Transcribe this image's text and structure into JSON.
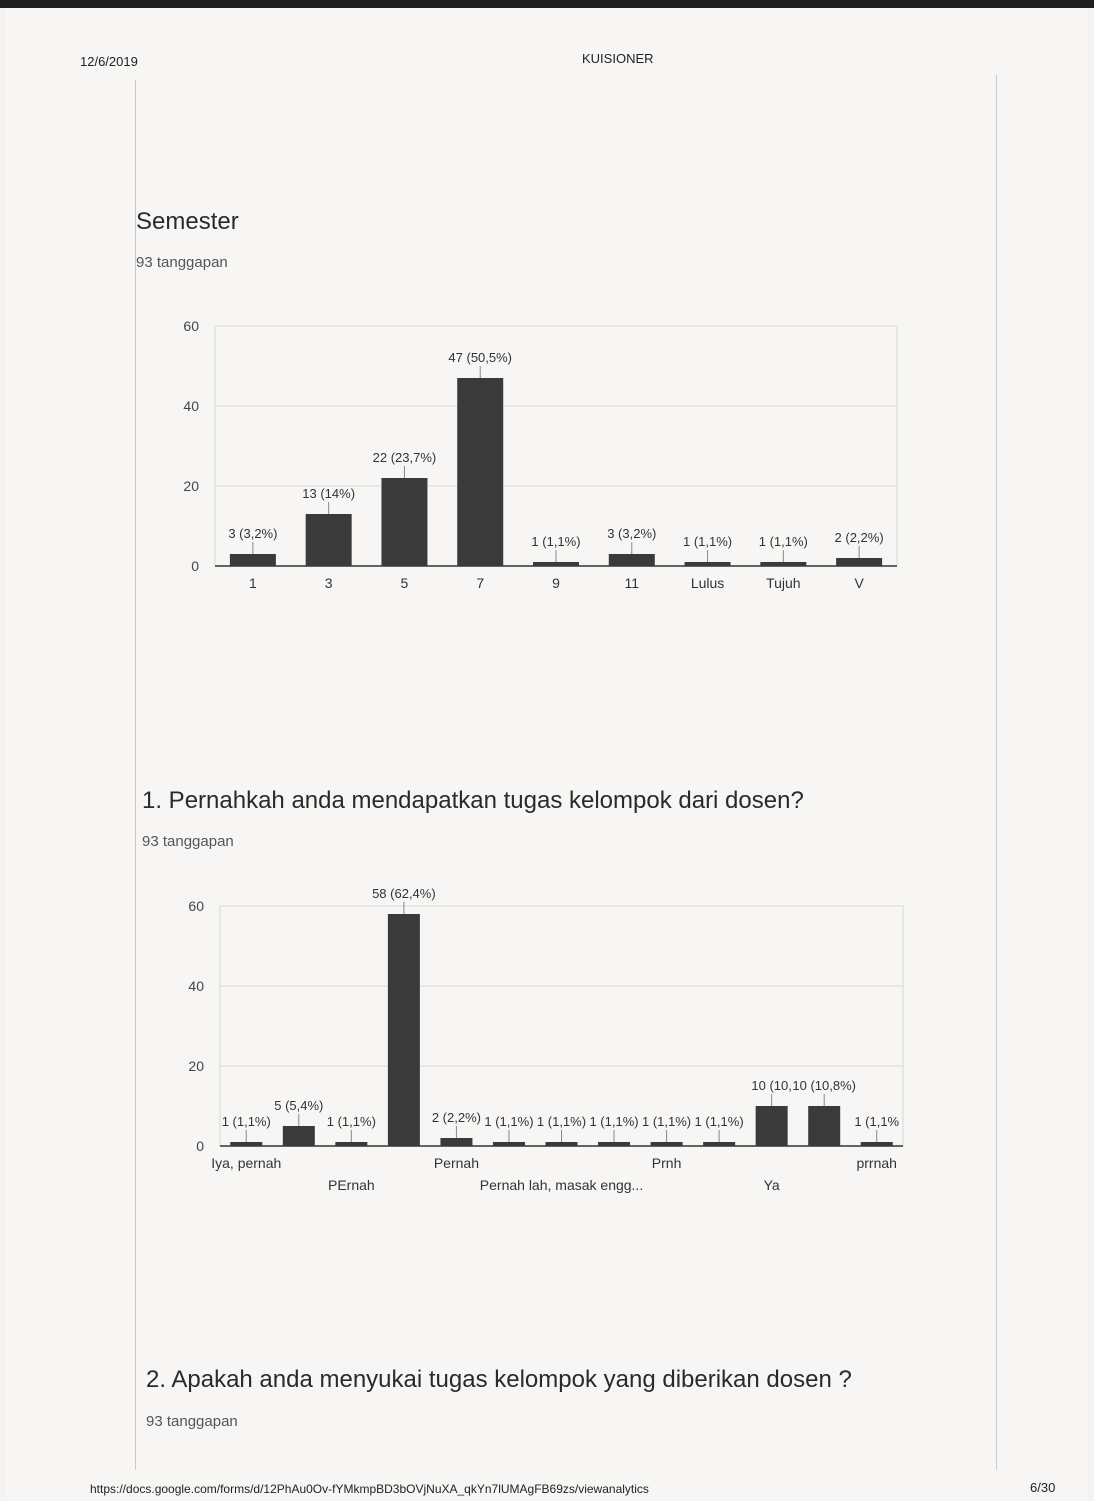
{
  "header": {
    "date": "12/6/2019",
    "title": "KUISIONER"
  },
  "sections": [
    {
      "title": "Semester",
      "responses": "93 tanggapan"
    },
    {
      "title": "1. Pernahkah anda mendapatkan tugas kelompok dari dosen?",
      "responses": "93 tanggapan"
    },
    {
      "title": "2. Apakah anda menyukai tugas kelompok yang diberikan dosen ?",
      "responses": "93 tanggapan"
    }
  ],
  "chart_data": [
    {
      "type": "bar",
      "title": "Semester",
      "categories": [
        "1",
        "3",
        "5",
        "7",
        "9",
        "11",
        "Lulus",
        "Tujuh",
        "V"
      ],
      "values": [
        3,
        13,
        22,
        47,
        1,
        3,
        1,
        1,
        2
      ],
      "data_labels": [
        "3 (3,2%)",
        "13 (14%)",
        "22 (23,7%)",
        "47 (50,5%)",
        "1 (1,1%)",
        "3 (3,2%)",
        "1 (1,1%)",
        "1 (1,1%)",
        "2 (2,2%)"
      ],
      "yticks": [
        "0",
        "20",
        "40",
        "60"
      ],
      "ylim": [
        0,
        60
      ],
      "grid": true,
      "bar_color": "#3a3a3a"
    },
    {
      "type": "bar",
      "title": "1. Pernahkah anda mendapatkan tugas kelompok dari dosen?",
      "categories": [
        "Iya, pernah",
        "",
        "PErnah",
        "",
        "Pernah",
        "",
        "Pernah lah, masak engg...",
        "",
        "Prnh",
        "",
        "Ya",
        "",
        "prrnah"
      ],
      "values": [
        1,
        5,
        1,
        58,
        2,
        1,
        1,
        1,
        1,
        1,
        10,
        10,
        1
      ],
      "data_labels": [
        "1 (1,1%)",
        "5 (5,4%)",
        "1 (1,1%)",
        "58 (62,4%)",
        "2 (2,2%)",
        "1 (1,1%)",
        "1 (1,1%)",
        "1 (1,1%)",
        "1 (1,1%)",
        "1 (1,1%)",
        "10 (10,",
        "10 (10,8%)",
        "1 (1,1%"
      ],
      "yticks": [
        "0",
        "20",
        "40",
        "60"
      ],
      "ylim": [
        0,
        60
      ],
      "grid": true,
      "bar_color": "#3a3a3a"
    }
  ],
  "footer": {
    "url": "https://docs.google.com/forms/d/12PhAu0Ov-fYMkmpBD3bOVjNuXA_qkYn7lUMAgFB69zs/viewanalytics",
    "page": "6/30"
  }
}
